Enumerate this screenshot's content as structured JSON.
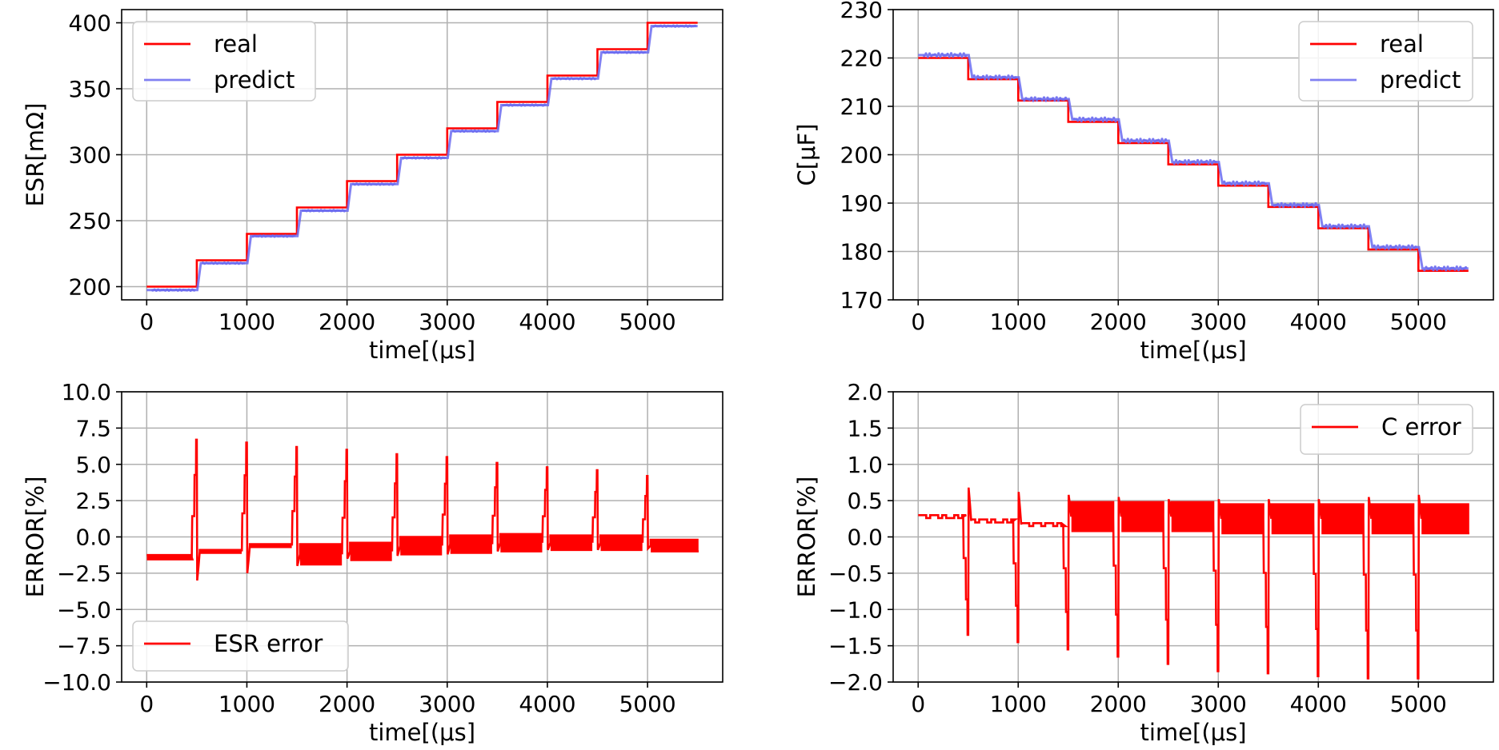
{
  "colors": {
    "real": "#ff0000",
    "predict": "#6b6bf0",
    "error": "#ff0000",
    "grid": "#b0b0b0",
    "axis": "#000000"
  },
  "chart_data": [
    {
      "id": "esr",
      "type": "line",
      "title": "",
      "xlabel": "time[(μs]",
      "ylabel": "ESR[mΩ]",
      "xlim": [
        -250,
        5750
      ],
      "ylim": [
        190,
        410
      ],
      "xticks": [
        0,
        1000,
        2000,
        3000,
        4000,
        5000
      ],
      "xtick_labels": [
        "0",
        "1000",
        "2000",
        "3000",
        "4000",
        "5000"
      ],
      "yticks": [
        200,
        250,
        300,
        350,
        400
      ],
      "ytick_labels": [
        "200",
        "250",
        "300",
        "350",
        "400"
      ],
      "grid": true,
      "legend": {
        "position": "top-left",
        "entries": [
          "real",
          "predict"
        ]
      },
      "series": [
        {
          "name": "real",
          "kind": "step",
          "color_key": "real",
          "breaks": [
            0,
            500,
            1000,
            1500,
            2000,
            2500,
            3000,
            3500,
            4000,
            4500,
            5000,
            5500
          ],
          "levels": [
            200,
            220,
            240,
            260,
            280,
            300,
            320,
            340,
            360,
            380,
            400
          ]
        },
        {
          "name": "predict",
          "kind": "step-offset",
          "color_key": "predict",
          "breaks": [
            0,
            500,
            1000,
            1500,
            2000,
            2500,
            3000,
            3500,
            4000,
            4500,
            5000,
            5500
          ],
          "levels": [
            197.4,
            217.8,
            238.3,
            257.6,
            277.7,
            297.6,
            317.9,
            337.6,
            357.7,
            377.6,
            397.5
          ]
        }
      ]
    },
    {
      "id": "cap",
      "type": "line",
      "title": "",
      "xlabel": "time[(μs]",
      "ylabel": "C[μF]",
      "xlim": [
        -250,
        5750
      ],
      "ylim": [
        170,
        230
      ],
      "xticks": [
        0,
        1000,
        2000,
        3000,
        4000,
        5000
      ],
      "xtick_labels": [
        "0",
        "1000",
        "2000",
        "3000",
        "4000",
        "5000"
      ],
      "yticks": [
        170,
        180,
        190,
        200,
        210,
        220,
        230
      ],
      "ytick_labels": [
        "170",
        "180",
        "190",
        "200",
        "210",
        "220",
        "230"
      ],
      "grid": true,
      "legend": {
        "position": "top-right",
        "entries": [
          "real",
          "predict"
        ]
      },
      "series": [
        {
          "name": "real",
          "kind": "step",
          "color_key": "real",
          "breaks": [
            0,
            500,
            1000,
            1500,
            2000,
            2500,
            3000,
            3500,
            4000,
            4500,
            5000,
            5500
          ],
          "levels": [
            220,
            215.6,
            211.2,
            206.8,
            202.4,
            198,
            193.6,
            189.2,
            184.8,
            180.4,
            176
          ]
        },
        {
          "name": "predict",
          "kind": "step-offset",
          "color_key": "predict",
          "breaks": [
            0,
            500,
            1000,
            1500,
            2000,
            2500,
            3000,
            3500,
            4000,
            4500,
            5000,
            5500
          ],
          "levels": [
            220.6,
            216.0,
            211.5,
            207.3,
            202.9,
            198.5,
            194.1,
            189.6,
            185.2,
            180.9,
            176.5
          ]
        }
      ]
    },
    {
      "id": "esr-error",
      "type": "line",
      "title": "",
      "xlabel": "time[(μs]",
      "ylabel": "ERROR[%]",
      "xlim": [
        -250,
        5750
      ],
      "ylim": [
        -10,
        10
      ],
      "xticks": [
        0,
        1000,
        2000,
        3000,
        4000,
        5000
      ],
      "xtick_labels": [
        "0",
        "1000",
        "2000",
        "3000",
        "4000",
        "5000"
      ],
      "yticks": [
        -10,
        -7.5,
        -5,
        -2.5,
        0,
        2.5,
        5,
        7.5,
        10
      ],
      "ytick_labels": [
        "−10.0",
        "−7.5",
        "−5.0",
        "−2.5",
        "0.0",
        "2.5",
        "5.0",
        "7.5",
        "10.0"
      ],
      "grid": true,
      "legend": {
        "position": "bottom-left",
        "entries": [
          "ESR error"
        ]
      },
      "series": [
        {
          "name": "ESR error",
          "kind": "error",
          "color_key": "error",
          "breaks": [
            0,
            500,
            1000,
            1500,
            2000,
            2500,
            3000,
            3500,
            4000,
            4500,
            5000,
            5500
          ],
          "segment_base": [
            -1.4,
            -1.0,
            -0.6,
            -1.2,
            -1.0,
            -0.6,
            -0.5,
            -0.4,
            -0.4,
            -0.4,
            -0.6
          ],
          "segment_osc": [
            0.15,
            0.1,
            0.1,
            0.7,
            0.6,
            0.6,
            0.6,
            0.6,
            0.5,
            0.5,
            0.4
          ],
          "spike_peak": [
            6.7,
            6.5,
            6.2,
            6.0,
            5.7,
            5.5,
            5.1,
            4.8,
            4.6,
            4.2
          ],
          "spike_min": [
            -3.0,
            -2.5,
            -2.0,
            -1.5,
            -1.3,
            -1.2,
            -1.0,
            -0.9,
            -0.9,
            -0.8
          ]
        }
      ]
    },
    {
      "id": "c-error",
      "type": "line",
      "title": "",
      "xlabel": "time[(μs]",
      "ylabel": "ERROR[%]",
      "xlim": [
        -250,
        5750
      ],
      "ylim": [
        -2,
        2
      ],
      "xticks": [
        0,
        1000,
        2000,
        3000,
        4000,
        5000
      ],
      "xtick_labels": [
        "0",
        "1000",
        "2000",
        "3000",
        "4000",
        "5000"
      ],
      "yticks": [
        -2,
        -1.5,
        -1,
        -0.5,
        0,
        0.5,
        1,
        1.5,
        2
      ],
      "ytick_labels": [
        "−2.0",
        "−1.5",
        "−1.0",
        "−0.5",
        "0.0",
        "0.5",
        "1.0",
        "1.5",
        "2.0"
      ],
      "grid": true,
      "legend": {
        "position": "top-right",
        "entries": [
          "C error"
        ]
      },
      "series": [
        {
          "name": "C error",
          "kind": "error",
          "color_key": "error",
          "breaks": [
            0,
            500,
            1000,
            1500,
            2000,
            2500,
            3000,
            3500,
            4000,
            4500,
            5000,
            5500
          ],
          "segment_base": [
            0.28,
            0.22,
            0.17,
            0.28,
            0.28,
            0.28,
            0.25,
            0.25,
            0.25,
            0.25,
            0.25
          ],
          "segment_osc": [
            0.02,
            0.02,
            0.02,
            0.2,
            0.2,
            0.2,
            0.2,
            0.2,
            0.2,
            0.2,
            0.2
          ],
          "spike_peak": [
            -1.35,
            -1.45,
            -1.55,
            -1.65,
            -1.75,
            -1.85,
            -1.88,
            -1.92,
            -1.95,
            -1.95
          ],
          "spike_min": [
            0.68,
            0.62,
            0.58,
            0.55,
            0.52,
            0.52,
            0.52,
            0.52,
            0.55,
            0.58
          ]
        }
      ]
    }
  ]
}
